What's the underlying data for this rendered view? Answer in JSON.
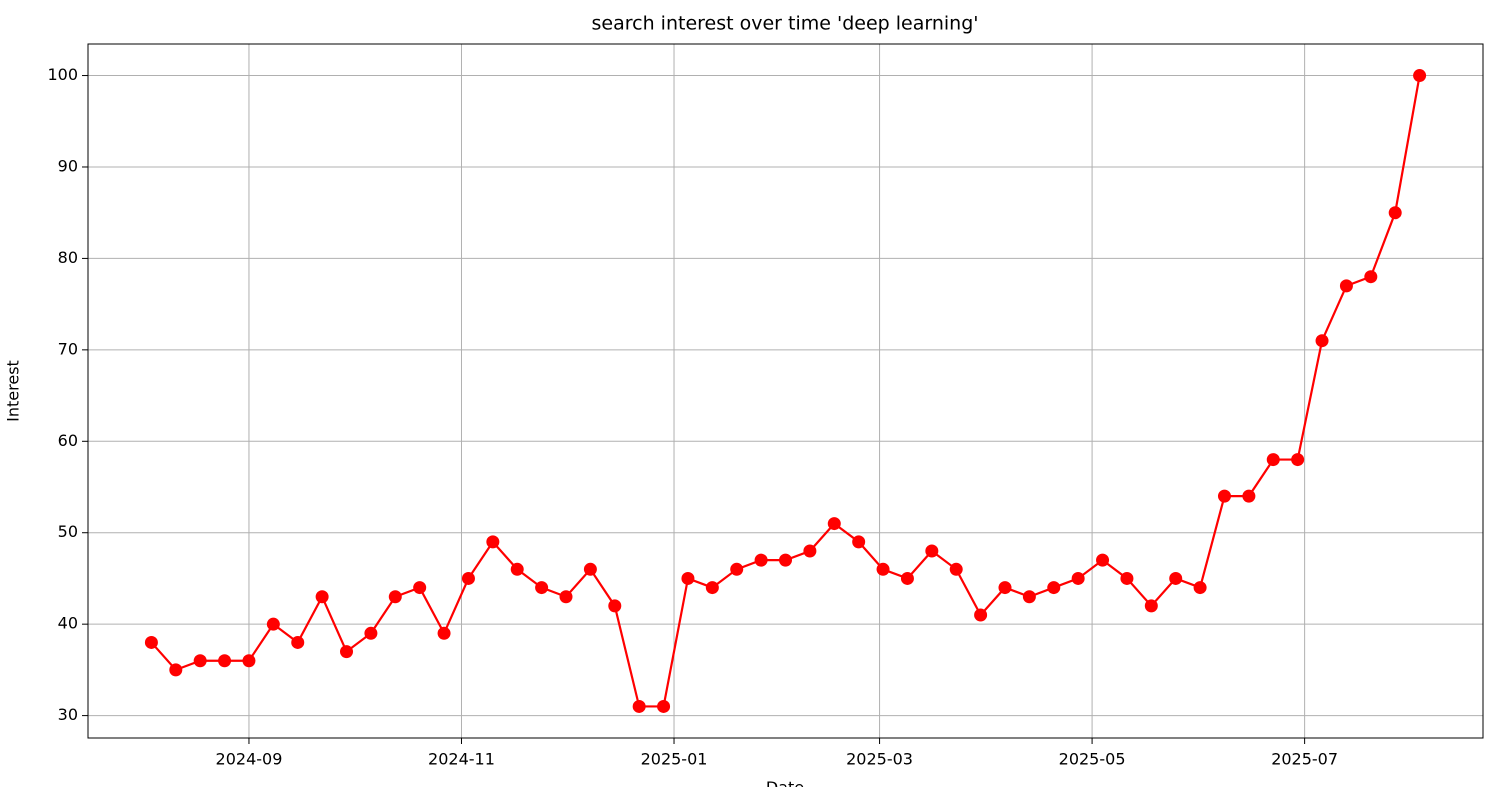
{
  "chart_data": {
    "type": "line",
    "title": "search interest over time 'deep learning'",
    "x_label": "Date",
    "y_label": "Interest",
    "x": [
      0,
      1,
      2,
      3,
      4,
      5,
      6,
      7,
      8,
      9,
      10,
      11,
      12,
      13,
      14,
      15,
      16,
      17,
      18,
      19,
      20,
      21,
      22,
      23,
      24,
      25,
      26,
      27,
      28,
      29,
      30,
      31,
      32,
      33,
      34,
      35,
      36,
      37,
      38,
      39,
      40,
      41,
      42,
      43,
      44,
      45,
      46,
      47,
      48,
      49,
      50,
      51,
      52
    ],
    "series": [
      {
        "color": "#ff0000",
        "values": [
          38,
          35,
          36,
          36,
          36,
          40,
          38,
          43,
          37,
          39,
          43,
          44,
          39,
          45,
          49,
          46,
          44,
          43,
          46,
          42,
          31,
          31,
          45,
          44,
          46,
          47,
          47,
          48,
          51,
          49,
          46,
          45,
          48,
          46,
          41,
          44,
          43,
          44,
          45,
          47,
          45,
          42,
          45,
          44,
          54,
          54,
          58,
          58,
          71,
          77,
          78,
          85,
          100
        ]
      }
    ],
    "xlim": [
      -2.6,
      54.6
    ],
    "xticks": [
      {
        "value": 4,
        "label": "2024-09"
      },
      {
        "value": 12.714,
        "label": "2024-11"
      },
      {
        "value": 21.429,
        "label": "2025-01"
      },
      {
        "value": 29.857,
        "label": "2025-03"
      },
      {
        "value": 38.571,
        "label": "2025-05"
      },
      {
        "value": 47.286,
        "label": "2025-07"
      }
    ],
    "ylim": [
      27.55,
      103.45
    ],
    "yticks": [
      30,
      40,
      50,
      60,
      70,
      80,
      90,
      100
    ],
    "grid": true
  }
}
